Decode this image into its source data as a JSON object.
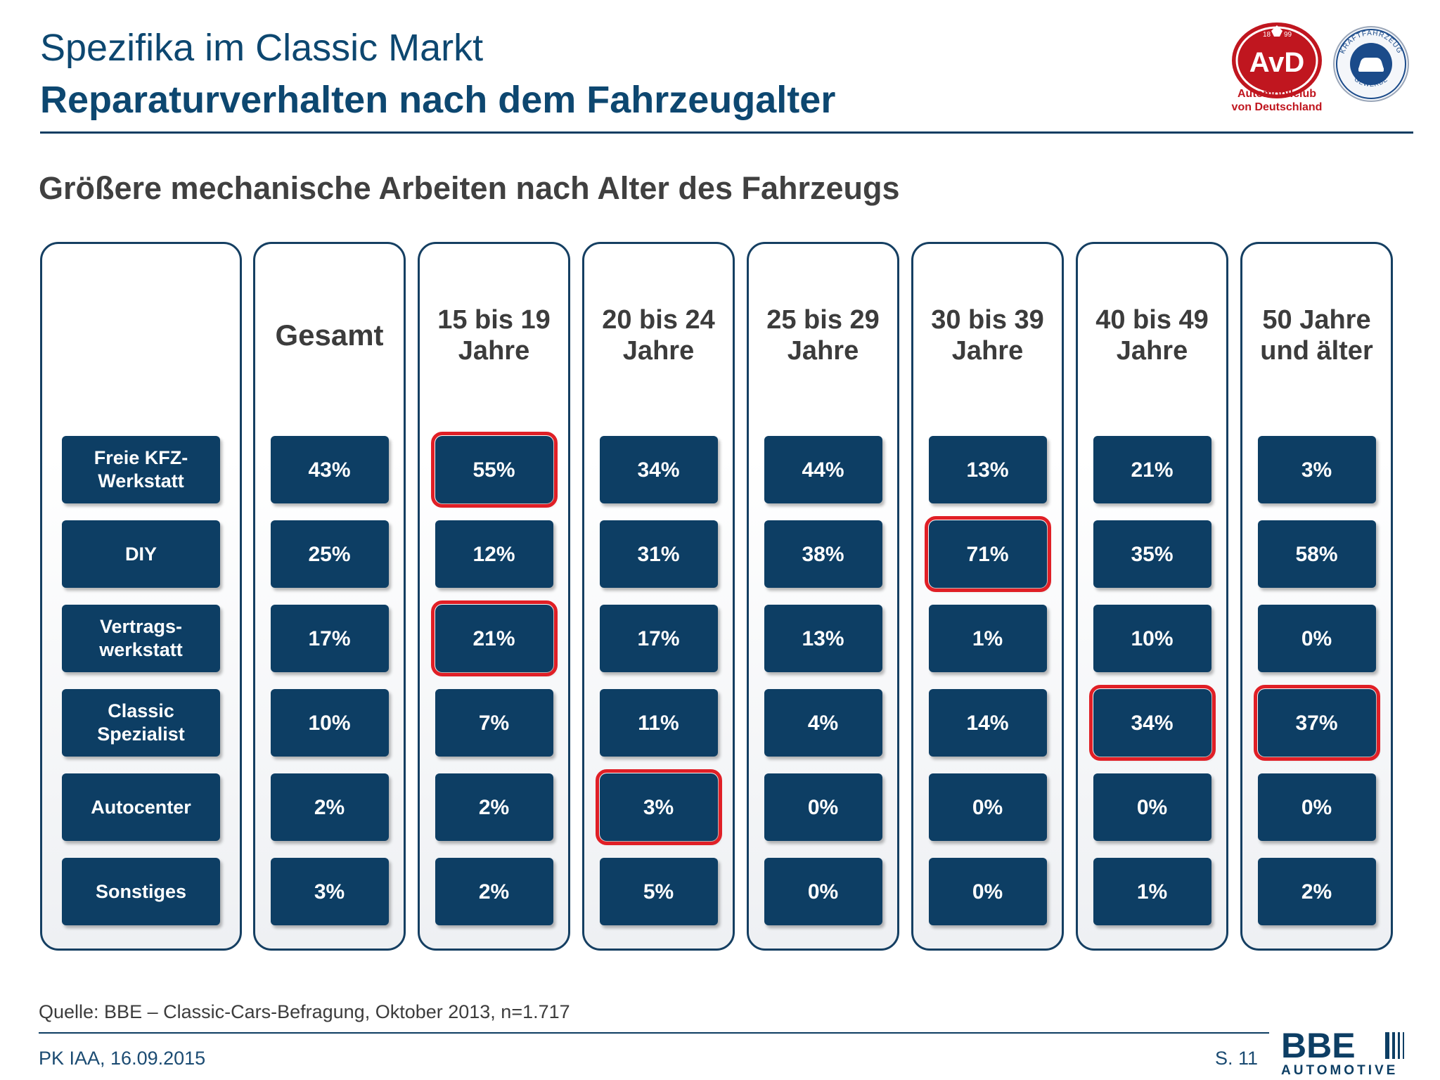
{
  "header": {
    "title": "Spezifika im Classic Markt",
    "subtitle": "Reparaturverhalten nach dem Fahrzeugalter"
  },
  "logos": {
    "avd": {
      "emblem_icon": "avd-emblem-icon",
      "text": "AvD",
      "year_left": "18",
      "year_right": "99",
      "caption_line1": "Automobilclub",
      "caption_line2": "von Deutschland",
      "color": "#c0161f"
    },
    "kfz": {
      "emblem_icon": "kfz-gewerbe-emblem-icon",
      "ring_text_top": "KRAFTFAHRZEUG",
      "ring_text_bottom": "GEWERBE",
      "color": "#1b4b8a"
    },
    "bbe": {
      "emblem_icon": "bbe-automotive-logo-icon",
      "text": "BBE",
      "subtext": "AUTOMOTIVE",
      "color": "#0d3e64"
    }
  },
  "chart_data": {
    "type": "table",
    "title": "Größere mechanische Arbeiten nach Alter des Fahrzeugs",
    "columns": [
      "Gesamt",
      "15 bis 19\nJahre",
      "20 bis 24\nJahre",
      "25 bis 29\nJahre",
      "30 bis 39\nJahre",
      "40 bis 49\nJahre",
      "50 Jahre\nund älter"
    ],
    "rows": [
      "Freie KFZ-\nWerkstatt",
      "DIY",
      "Vertrags-\nwerkstatt",
      "Classic Spezialist",
      "Autocenter",
      "Sonstiges"
    ],
    "values": [
      [
        "43%",
        "55%",
        "34%",
        "44%",
        "13%",
        "21%",
        "3%"
      ],
      [
        "25%",
        "12%",
        "31%",
        "38%",
        "71%",
        "35%",
        "58%"
      ],
      [
        "17%",
        "21%",
        "17%",
        "13%",
        "1%",
        "10%",
        "0%"
      ],
      [
        "10%",
        "7%",
        "11%",
        "4%",
        "14%",
        "34%",
        "37%"
      ],
      [
        "2%",
        "2%",
        "3%",
        "0%",
        "0%",
        "0%",
        "0%"
      ],
      [
        "3%",
        "2%",
        "5%",
        "0%",
        "0%",
        "1%",
        "2%"
      ]
    ],
    "highlighted": [
      [
        0,
        1
      ],
      [
        2,
        1
      ],
      [
        4,
        2
      ],
      [
        1,
        4
      ],
      [
        3,
        5
      ],
      [
        3,
        6
      ]
    ],
    "cell_color": "#0d3e64",
    "highlight_color": "#e01f26"
  },
  "footer": {
    "source": "Quelle: BBE – Classic-Cars-Befragung, Oktober 2013, n=1.717",
    "event": "PK IAA, 16.09.2015",
    "page": "S. 11"
  }
}
